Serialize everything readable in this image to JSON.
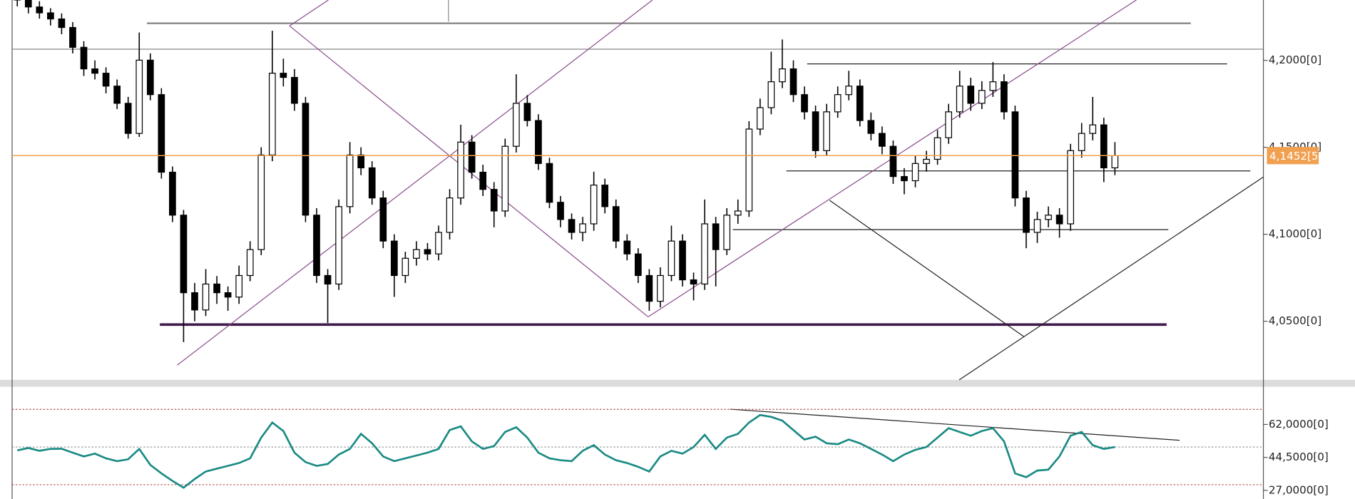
{
  "chart_data": [
    {
      "type": "candlestick",
      "open": [
        4.238,
        4.2347,
        4.2307,
        4.2273,
        4.2238,
        4.2189,
        4.2075,
        4.1951,
        4.1926,
        4.1852,
        4.1753,
        4.158,
        4.2001,
        4.1803,
        4.1357,
        4.111,
        4.0664,
        4.0565,
        4.0714,
        4.0664,
        4.0639,
        4.0763,
        4.0912,
        4.1456,
        4.1926,
        4.1902,
        4.1753,
        4.111,
        4.0763,
        4.0714,
        4.1159,
        4.1456,
        4.1382,
        4.1209,
        4.0961,
        4.0763,
        4.0862,
        4.0912,
        4.0887,
        4.1011,
        4.1209,
        4.153,
        4.1357,
        4.1258,
        4.1134,
        4.1506,
        4.1753,
        4.1654,
        4.1407,
        4.1184,
        4.1085,
        4.1011,
        4.106,
        4.1283,
        4.1159,
        4.0961,
        4.0887,
        4.0763,
        4.0615,
        4.0763,
        4.0961,
        4.0738,
        4.0714,
        4.106,
        4.0912,
        4.111,
        4.1134,
        4.1605,
        4.1728,
        4.1877,
        4.1951,
        4.1803,
        4.1704,
        4.1481,
        4.1704,
        4.1803,
        4.1852,
        4.1654,
        4.158,
        4.1506,
        4.1332,
        4.1308,
        4.1407,
        4.1431,
        4.1555,
        4.1704,
        4.1852,
        4.1753,
        4.1827,
        4.1877,
        4.1704,
        4.1209,
        4.1011,
        4.1085,
        4.111,
        4.106,
        4.1481,
        4.158,
        4.1629,
        4.1382
      ],
      "high": [
        4.242,
        4.238,
        4.234,
        4.23,
        4.227,
        4.222,
        4.211,
        4.2,
        4.196,
        4.189,
        4.179,
        4.216,
        4.204,
        4.184,
        4.139,
        4.114,
        4.072,
        4.08,
        4.076,
        4.07,
        4.082,
        4.096,
        4.15,
        4.217,
        4.201,
        4.195,
        4.179,
        4.115,
        4.08,
        4.12,
        4.153,
        4.15,
        4.142,
        4.125,
        4.1,
        4.09,
        4.096,
        4.095,
        4.105,
        4.126,
        4.163,
        4.157,
        4.14,
        4.13,
        4.155,
        4.192,
        4.18,
        4.169,
        4.144,
        4.122,
        4.112,
        4.11,
        4.136,
        4.132,
        4.12,
        4.1,
        4.092,
        4.08,
        4.081,
        4.105,
        4.1,
        4.078,
        4.12,
        4.11,
        4.115,
        4.12,
        4.165,
        4.178,
        4.205,
        4.212,
        4.2,
        4.185,
        4.174,
        4.175,
        4.185,
        4.194,
        4.189,
        4.17,
        4.162,
        4.154,
        4.138,
        4.145,
        4.148,
        4.16,
        4.175,
        4.194,
        4.19,
        4.188,
        4.199,
        4.192,
        4.174,
        4.125,
        4.113,
        4.116,
        4.115,
        4.152,
        4.164,
        4.179,
        4.167,
        4.153
      ],
      "low": [
        4.231,
        4.227,
        4.224,
        4.22,
        4.215,
        4.204,
        4.191,
        4.189,
        4.181,
        4.172,
        4.155,
        4.156,
        4.177,
        4.132,
        4.107,
        4.038,
        4.05,
        4.053,
        4.06,
        4.056,
        4.06,
        4.073,
        4.088,
        4.142,
        4.185,
        4.171,
        4.107,
        4.072,
        4.049,
        4.068,
        4.112,
        4.134,
        4.117,
        4.092,
        4.064,
        4.072,
        4.082,
        4.085,
        4.085,
        4.097,
        4.117,
        4.132,
        4.122,
        4.104,
        4.11,
        4.147,
        4.162,
        4.137,
        4.115,
        4.104,
        4.097,
        4.096,
        4.102,
        4.112,
        4.092,
        4.085,
        4.072,
        4.056,
        4.058,
        4.073,
        4.07,
        4.062,
        4.068,
        4.07,
        4.088,
        4.106,
        4.11,
        4.157,
        4.169,
        4.184,
        4.176,
        4.166,
        4.144,
        4.145,
        4.167,
        4.177,
        4.162,
        4.154,
        4.146,
        4.129,
        4.123,
        4.127,
        4.136,
        4.14,
        4.152,
        4.167,
        4.171,
        4.172,
        4.179,
        4.166,
        4.116,
        4.092,
        4.095,
        4.104,
        4.098,
        4.102,
        4.144,
        4.154,
        4.13,
        4.134
      ],
      "close": [
        4.2347,
        4.2307,
        4.2273,
        4.2238,
        4.2189,
        4.2075,
        4.1951,
        4.1926,
        4.1852,
        4.1753,
        4.158,
        4.2001,
        4.1803,
        4.1357,
        4.111,
        4.0664,
        4.0565,
        4.0714,
        4.0664,
        4.0639,
        4.0763,
        4.0912,
        4.1456,
        4.1926,
        4.1902,
        4.1753,
        4.111,
        4.0763,
        4.0714,
        4.1159,
        4.1456,
        4.1382,
        4.1209,
        4.0961,
        4.0763,
        4.0862,
        4.0912,
        4.0887,
        4.1011,
        4.1209,
        4.153,
        4.1357,
        4.1258,
        4.1134,
        4.1506,
        4.1753,
        4.1654,
        4.1407,
        4.1184,
        4.1085,
        4.1011,
        4.106,
        4.1283,
        4.1159,
        4.0961,
        4.0887,
        4.0763,
        4.0615,
        4.0763,
        4.0961,
        4.0738,
        4.0714,
        4.106,
        4.0912,
        4.111,
        4.1134,
        4.1605,
        4.1728,
        4.1877,
        4.1951,
        4.1803,
        4.1704,
        4.1481,
        4.1704,
        4.1803,
        4.1852,
        4.1654,
        4.158,
        4.1506,
        4.1332,
        4.1308,
        4.1407,
        4.1431,
        4.1555,
        4.1704,
        4.1852,
        4.1753,
        4.1827,
        4.1877,
        4.1704,
        4.1209,
        4.1011,
        4.1085,
        4.111,
        4.106,
        4.1481,
        4.158,
        4.1629,
        4.1382,
        4.1452
      ],
      "up_color": "#ffffff",
      "down_color": "#000000",
      "wick_color": "#000000",
      "ylim": [
        4.0163,
        4.2347
      ],
      "yticks": [
        {
          "value": 4.05,
          "label": "4,0500[0]"
        },
        {
          "value": 4.1,
          "label": "4,1000[0]"
        },
        {
          "value": 4.15,
          "label": "4,1500[0]"
        },
        {
          "value": 4.2,
          "label": "4,2000[0]"
        }
      ],
      "current_price": {
        "value": 4.14525,
        "label": "4,1452[5]",
        "color": "#f0a050"
      }
    },
    {
      "type": "line",
      "values": [
        48.2,
        49.5,
        48.0,
        49.0,
        49.1,
        47.0,
        45.0,
        46.5,
        44.0,
        42.5,
        43.5,
        49.0,
        40.5,
        36.0,
        32.0,
        28.4,
        33.0,
        37.0,
        38.5,
        40.0,
        41.5,
        44.0,
        55.0,
        63.0,
        58.5,
        47.0,
        42.0,
        40.0,
        41.0,
        46.0,
        49.0,
        57.0,
        52.0,
        45.0,
        42.5,
        44.0,
        45.5,
        47.0,
        49.0,
        59.0,
        61.0,
        53.0,
        49.0,
        50.5,
        58.0,
        60.5,
        55.0,
        47.0,
        44.0,
        43.0,
        42.5,
        48.0,
        51.0,
        46.0,
        43.0,
        41.5,
        39.5,
        37.0,
        45.0,
        48.0,
        46.5,
        50.0,
        56.5,
        49.0,
        55.0,
        57.0,
        63.0,
        67.0,
        66.0,
        64.0,
        59.0,
        54.0,
        55.5,
        52.0,
        51.5,
        54.0,
        52.0,
        49.0,
        46.0,
        42.5,
        46.0,
        48.5,
        50.0,
        55.0,
        60.0,
        58.0,
        56.0,
        58.5,
        60.0,
        53.0,
        36.0,
        34.0,
        37.5,
        38.0,
        45.0,
        56.0,
        58.0,
        51.0,
        49.0,
        50.0
      ],
      "color": "#1a8a84",
      "ylim": [
        22.4,
        82
      ],
      "yticks": [
        {
          "value": 27,
          "label": "27,0000[0]"
        },
        {
          "value": 44.5,
          "label": "44,5000[0]"
        },
        {
          "value": 62,
          "label": "62,0000[0]"
        }
      ],
      "levels": [
        70,
        50,
        30
      ]
    }
  ]
}
